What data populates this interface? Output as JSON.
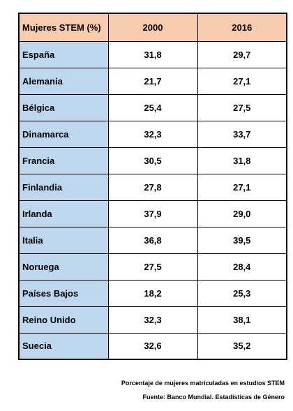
{
  "table": {
    "header": {
      "label": "Mujeres STEM (%)",
      "col1": "2000",
      "col2": "2016"
    },
    "rows": [
      {
        "country": "España",
        "y2000": "31,8",
        "y2016": "29,7"
      },
      {
        "country": "Alemania",
        "y2000": "21,7",
        "y2016": "27,1"
      },
      {
        "country": "Bélgica",
        "y2000": "25,4",
        "y2016": "27,5"
      },
      {
        "country": "Dinamarca",
        "y2000": "32,3",
        "y2016": "33,7"
      },
      {
        "country": "Francia",
        "y2000": "30,5",
        "y2016": "31,8"
      },
      {
        "country": "Finlandia",
        "y2000": "27,8",
        "y2016": "27,1"
      },
      {
        "country": "Irlanda",
        "y2000": "37,9",
        "y2016": "29,0"
      },
      {
        "country": "Italia",
        "y2000": "36,8",
        "y2016": "39,5"
      },
      {
        "country": "Noruega",
        "y2000": "27,5",
        "y2016": "28,4"
      },
      {
        "country": "Países Bajos",
        "y2000": "18,2",
        "y2016": "25,3"
      },
      {
        "country": "Reino Unido",
        "y2000": "32,3",
        "y2016": "38,1"
      },
      {
        "country": "Suecia",
        "y2000": "32,6",
        "y2016": "35,2"
      }
    ],
    "colors": {
      "header_bg": "#f8cbad",
      "country_bg": "#bdd7ee",
      "value_bg": "#ffffff",
      "border": "#000000"
    }
  },
  "notes": {
    "caption": "Porcentaje de mujeres matriculadas en estudios STEM",
    "source": "Fuente: Banco Mundial. Estadísticas de Género"
  }
}
